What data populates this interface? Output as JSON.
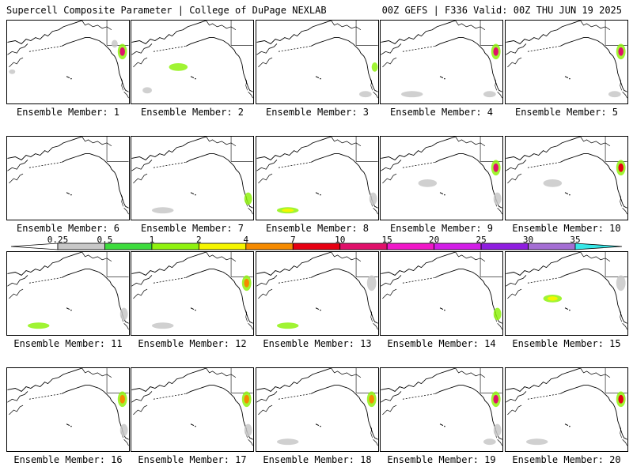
{
  "header": {
    "left_title": "Supercell Composite Parameter | College of DuPage NEXLAB",
    "right_title": "00Z GEFS | F336 Valid: 00Z THU JUN 19 2025"
  },
  "caption_prefix": "Ensemble Member:",
  "members": [
    {
      "label": "Ensemble Member: 1",
      "max_value": 10,
      "hotspots": [
        "west-coast-north",
        "pacific-northwest",
        "hawaii-west"
      ]
    },
    {
      "label": "Ensemble Member: 2",
      "max_value": 1,
      "hotspots": [
        "pacific-central",
        "hawaii-south"
      ]
    },
    {
      "label": "Ensemble Member: 3",
      "max_value": 1,
      "hotspots": [
        "southwest-us",
        "pacific-east"
      ]
    },
    {
      "label": "Ensemble Member: 4",
      "max_value": 10,
      "hotspots": [
        "west-coast-north",
        "pacific-south",
        "pacific-east"
      ]
    },
    {
      "label": "Ensemble Member: 5",
      "max_value": 10,
      "hotspots": [
        "west-coast-north",
        "pacific-east"
      ]
    },
    {
      "label": "Ensemble Member: 6",
      "max_value": 0.5,
      "hotspots": []
    },
    {
      "label": "Ensemble Member: 7",
      "max_value": 1,
      "hotspots": [
        "west-coast-south",
        "pacific-south"
      ]
    },
    {
      "label": "Ensemble Member: 8",
      "max_value": 2,
      "hotspots": [
        "pacific-south",
        "west-coast-south"
      ]
    },
    {
      "label": "Ensemble Member: 9",
      "max_value": 10,
      "hotspots": [
        "west-coast-north",
        "west-coast-south",
        "pacific-central"
      ]
    },
    {
      "label": "Ensemble Member: 10",
      "max_value": 7,
      "hotspots": [
        "west-coast-north",
        "pacific-central"
      ]
    },
    {
      "label": "Ensemble Member: 11",
      "max_value": 1,
      "hotspots": [
        "pacific-south",
        "west-coast-south"
      ]
    },
    {
      "label": "Ensemble Member: 12",
      "max_value": 4,
      "hotspots": [
        "west-coast-north",
        "pacific-south"
      ]
    },
    {
      "label": "Ensemble Member: 13",
      "max_value": 1,
      "hotspots": [
        "pacific-south",
        "west-coast-north"
      ]
    },
    {
      "label": "Ensemble Member: 14",
      "max_value": 1,
      "hotspots": [
        "west-coast-south"
      ]
    },
    {
      "label": "Ensemble Member: 15",
      "max_value": 2,
      "hotspots": [
        "pacific-central",
        "west-coast-north"
      ]
    },
    {
      "label": "Ensemble Member: 16",
      "max_value": 4,
      "hotspots": [
        "west-coast-north",
        "west-coast-south"
      ]
    },
    {
      "label": "Ensemble Member: 17",
      "max_value": 4,
      "hotspots": [
        "west-coast-north",
        "west-coast-south"
      ]
    },
    {
      "label": "Ensemble Member: 18",
      "max_value": 4,
      "hotspots": [
        "west-coast-north",
        "pacific-south"
      ]
    },
    {
      "label": "Ensemble Member: 19",
      "max_value": 10,
      "hotspots": [
        "west-coast-north",
        "west-coast-south",
        "pacific-east"
      ]
    },
    {
      "label": "Ensemble Member: 20",
      "max_value": 7,
      "hotspots": [
        "west-coast-north",
        "pacific-south"
      ]
    }
  ],
  "colorbar": {
    "ticks": [
      "0.25",
      "0.5",
      "1",
      "2",
      "4",
      "7",
      "10",
      "15",
      "20",
      "25",
      "30",
      "35"
    ],
    "colors": [
      "#ffffff",
      "#c8c8c8",
      "#3ddc3d",
      "#8ff20f",
      "#f5f500",
      "#f58a00",
      "#e60012",
      "#e0106a",
      "#f017c8",
      "#d21ee6",
      "#8f1ee0",
      "#a46ed4",
      "#38e8e8"
    ]
  }
}
